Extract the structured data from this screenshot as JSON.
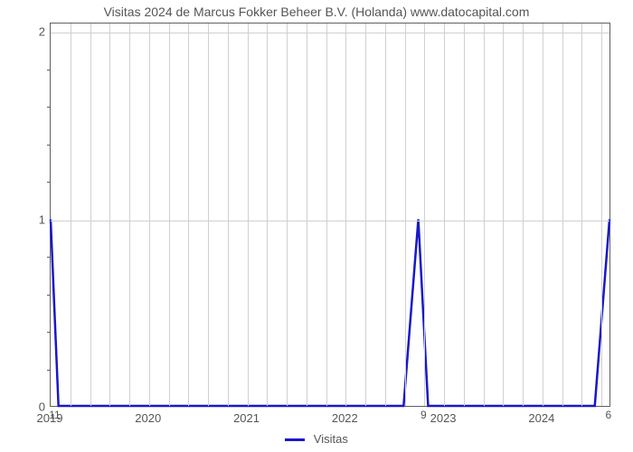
{
  "chart": {
    "type": "line",
    "title": "Visitas 2024 de Marcus Fokker Beheer B.V. (Holanda) www.datocapital.com",
    "title_fontsize": 14,
    "title_color": "#555555",
    "background_color": "#ffffff",
    "plot_border_color": "#606060",
    "grid_color": "#d0d0d0",
    "axis_label_color": "#555555",
    "axis_label_fontsize": 13,
    "x_axis": {
      "min": 2019,
      "max": 2024.7,
      "major_ticks": [
        2019,
        2020,
        2021,
        2022,
        2023,
        2024
      ],
      "minor_gridlines": 4
    },
    "y_axis": {
      "min": 0,
      "max": 2.05,
      "major_ticks": [
        0,
        1,
        2
      ],
      "minor_ticks_between": 4
    },
    "series": {
      "name": "Visitas",
      "color": "#1818c8",
      "line_width": 2.5,
      "points_x": [
        2019,
        2019.08,
        2022.6,
        2022.75,
        2022.85,
        2024.55,
        2024.7
      ],
      "points_y": [
        1,
        0,
        0,
        1,
        0,
        0,
        1
      ]
    },
    "data_labels": [
      {
        "x": 2019.05,
        "y_pos": 0,
        "text": "11"
      },
      {
        "x": 2022.8,
        "y_pos": 0,
        "text": "9"
      },
      {
        "x": 2024.68,
        "y_pos": 0,
        "text": "6"
      }
    ],
    "legend": {
      "label": "Visitas",
      "color": "#1818c8"
    }
  }
}
